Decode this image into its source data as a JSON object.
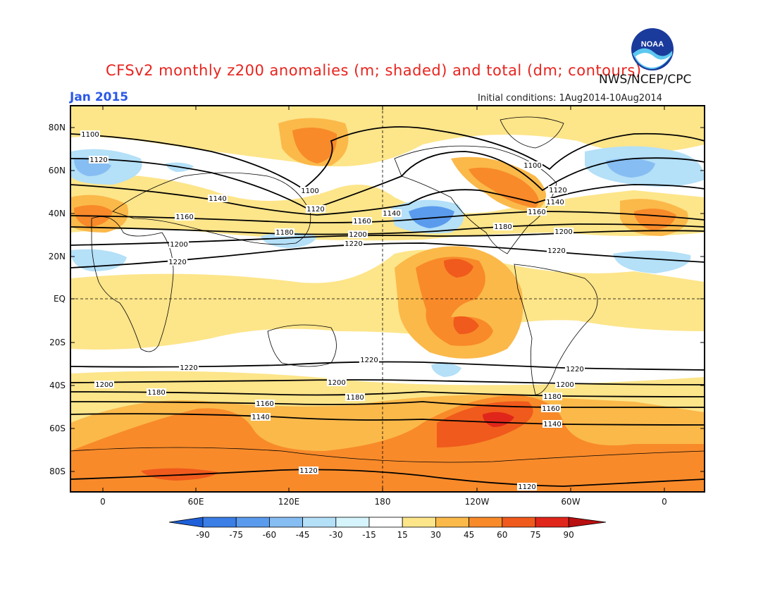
{
  "title": "CFSv2 monthly z200 anomalies (m; shaded) and total (dm; contours)",
  "agency": "NWS/NCEP/CPC",
  "valid_month": "Jan 2015",
  "initial_conditions": "Initial conditions: 1Aug2014-10Aug2014",
  "logo_text": "NOAA",
  "lat_labels": [
    "80N",
    "60N",
    "40N",
    "20N",
    "EQ",
    "20S",
    "40S",
    "60S",
    "80S"
  ],
  "lon_labels": [
    "0",
    "60E",
    "120E",
    "180",
    "120W",
    "60W",
    "0"
  ],
  "colorbar": {
    "ticks": [
      "-90",
      "-75",
      "-60",
      "-45",
      "-30",
      "-15",
      "15",
      "30",
      "45",
      "60",
      "75",
      "90"
    ],
    "colors": [
      "#1f5fd8",
      "#3a7ee6",
      "#5a9bed",
      "#86bdf2",
      "#b4e0f8",
      "#d6f4fb",
      "#ffffff",
      "#fde58a",
      "#fbb94a",
      "#f88a2a",
      "#f05a1c",
      "#e0261a",
      "#b80f10"
    ]
  },
  "contours": [
    {
      "label": "1100"
    },
    {
      "label": "1120"
    },
    {
      "label": "1140"
    },
    {
      "label": "1160"
    },
    {
      "label": "1180"
    },
    {
      "label": "1200"
    },
    {
      "label": "1220"
    }
  ]
}
